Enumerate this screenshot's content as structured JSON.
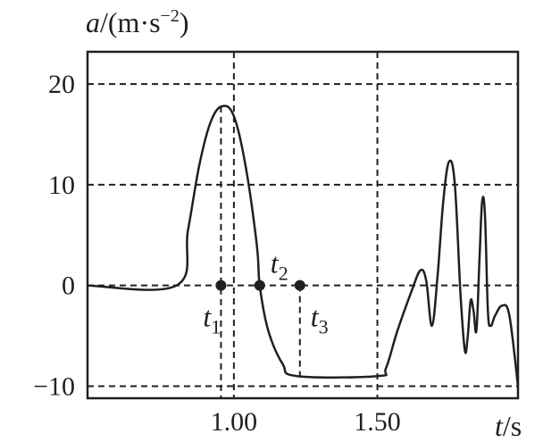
{
  "chart_data": {
    "type": "line",
    "ylabel": {
      "var": "a",
      "unit_open": "/(m·s",
      "unit_exp": "−2",
      "unit_close": ")"
    },
    "xlabel": {
      "var": "t",
      "unit": "/s"
    },
    "xlim": [
      0.49,
      1.99
    ],
    "ylim": [
      -11.2,
      23.2
    ],
    "xticks": [
      {
        "value": 1.0,
        "label": "1.00"
      },
      {
        "value": 1.5,
        "label": "1.50"
      }
    ],
    "yticks": [
      {
        "value": 20,
        "label": "20"
      },
      {
        "value": 10,
        "label": "10"
      },
      {
        "value": 0,
        "label": "0"
      },
      {
        "value": -10,
        "label": "−10"
      }
    ],
    "grid": "dashed",
    "series": [
      {
        "points": [
          [
            0.49,
            0
          ],
          [
            0.8,
            0
          ],
          [
            0.84,
            5.5
          ],
          [
            0.88,
            12.0
          ],
          [
            0.92,
            16.3
          ],
          [
            0.96,
            17.8
          ],
          [
            1.0,
            16.8
          ],
          [
            1.04,
            12.0
          ],
          [
            1.08,
            4.0
          ],
          [
            1.09,
            0
          ],
          [
            1.12,
            -4.5
          ],
          [
            1.17,
            -7.8
          ],
          [
            1.22,
            -9.0
          ],
          [
            1.5,
            -9.0
          ],
          [
            1.53,
            -8.2
          ],
          [
            1.57,
            -4.5
          ],
          [
            1.62,
            -0.5
          ],
          [
            1.65,
            1.5
          ],
          [
            1.67,
            0.5
          ],
          [
            1.69,
            -4.0
          ],
          [
            1.71,
            1.0
          ],
          [
            1.73,
            8.5
          ],
          [
            1.75,
            12.3
          ],
          [
            1.77,
            10.0
          ],
          [
            1.79,
            -1.0
          ],
          [
            1.805,
            -6.5
          ],
          [
            1.815,
            -5.0
          ],
          [
            1.825,
            -1.5
          ],
          [
            1.835,
            -2.5
          ],
          [
            1.845,
            -4.5
          ],
          [
            1.855,
            2.0
          ],
          [
            1.865,
            8.3
          ],
          [
            1.875,
            7.0
          ],
          [
            1.885,
            -2.5
          ],
          [
            1.895,
            -4.0
          ],
          [
            1.91,
            -3.0
          ],
          [
            1.935,
            -2.0
          ],
          [
            1.96,
            -3.0
          ],
          [
            1.99,
            -10.0
          ]
        ]
      }
    ],
    "markers": [
      {
        "x": 0.955,
        "y": 0,
        "label": "t",
        "sub": "1",
        "label_pos": "below-left"
      },
      {
        "x": 1.09,
        "y": 0,
        "label": "t",
        "sub": "2",
        "label_pos": "above"
      },
      {
        "x": 1.23,
        "y": 0,
        "label": "t",
        "sub": "3",
        "label_pos": "below-right"
      }
    ]
  }
}
